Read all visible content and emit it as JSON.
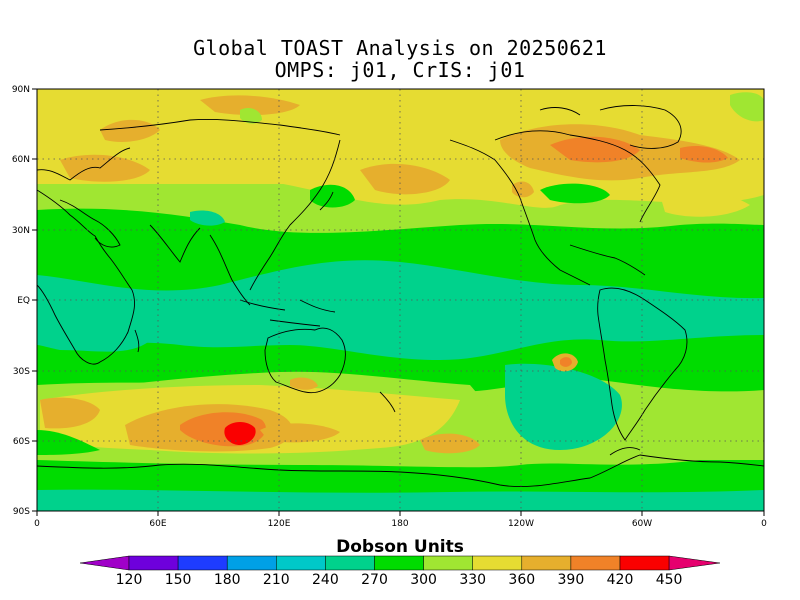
{
  "title": {
    "line1": "Global TOAST Analysis on 20250621",
    "line2": "OMPS: j01, CrIS: j01"
  },
  "axes": {
    "lat_labels": [
      "90N",
      "60N",
      "30N",
      "EQ",
      "30S",
      "60S",
      "90S"
    ],
    "lon_labels": [
      "0",
      "60E",
      "120E",
      "180",
      "120W",
      "60W",
      "0"
    ]
  },
  "colorbar": {
    "title": "Dobson Units",
    "ticks": [
      "120",
      "150",
      "180",
      "210",
      "240",
      "270",
      "300",
      "330",
      "360",
      "390",
      "420",
      "450"
    ],
    "colors": [
      "#a000c8",
      "#6e00dc",
      "#1e3cff",
      "#00a0e6",
      "#00c8c8",
      "#00d28c",
      "#00dc00",
      "#a0e632",
      "#e6dc32",
      "#e6af2d",
      "#f08228",
      "#fa0000",
      "#e6006e"
    ]
  },
  "map_state": {
    "date": "20250621",
    "units": "Dobson Units",
    "projection": "cylindrical equidistant",
    "grid": "dotted lat/lon grid"
  }
}
